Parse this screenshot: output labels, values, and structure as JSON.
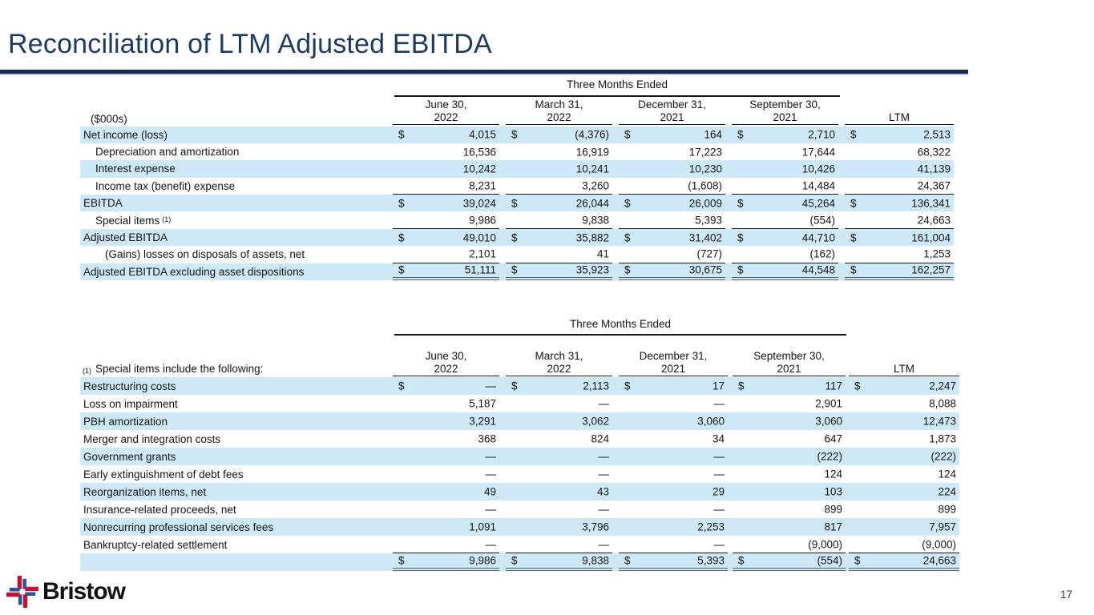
{
  "page": {
    "title": "Reconciliation of LTM Adjusted EBITDA"
  },
  "colors": {
    "accent_navy": "#1f3a5f",
    "rule_navy": "#16294d",
    "band_blue": "#cde9f8",
    "logo_red": "#c8102e",
    "logo_blue": "#1d5ba5"
  },
  "table1": {
    "units_label": "($000s)",
    "span_header": "Three Months Ended",
    "columns": [
      {
        "l1": "June 30,",
        "l2": "2022"
      },
      {
        "l1": "March 31,",
        "l2": "2022"
      },
      {
        "l1": "December 31,",
        "l2": "2021"
      },
      {
        "l1": "September 30,",
        "l2": "2021"
      },
      {
        "l1": "",
        "l2": "LTM"
      }
    ],
    "rows": [
      {
        "label": "Net income (loss)",
        "indent": 0,
        "band": true,
        "dollar": "$",
        "values": [
          "4,015",
          "(4,376)",
          "164",
          "2,710",
          "2,513"
        ]
      },
      {
        "label": "Depreciation and amortization",
        "indent": 1,
        "band": false,
        "values": [
          "16,536",
          "16,919",
          "17,223",
          "17,644",
          "68,322"
        ]
      },
      {
        "label": "Interest expense",
        "indent": 1,
        "band": true,
        "values": [
          "10,242",
          "10,241",
          "10,230",
          "10,426",
          "41,139"
        ]
      },
      {
        "label": "Income tax (benefit) expense",
        "indent": 1,
        "band": false,
        "bb": "single",
        "values": [
          "8,231",
          "3,260",
          "(1,608)",
          "14,484",
          "24,367"
        ]
      },
      {
        "label": "EBITDA",
        "indent": 0,
        "band": true,
        "dollar": "$",
        "values": [
          "39,024",
          "26,044",
          "26,009",
          "45,264",
          "136,341"
        ]
      },
      {
        "label": "Special items",
        "sup": "(1)",
        "indent": 1,
        "band": false,
        "bb": "single",
        "values": [
          "9,986",
          "9,838",
          "5,393",
          "(554)",
          "24,663"
        ]
      },
      {
        "label": "Adjusted EBITDA",
        "indent": 0,
        "band": true,
        "dollar": "$",
        "values": [
          "49,010",
          "35,882",
          "31,402",
          "44,710",
          "161,004"
        ]
      },
      {
        "label": "(Gains) losses on disposals of assets, net",
        "indent": 2,
        "band": false,
        "bb": "single",
        "values": [
          "2,101",
          "41",
          "(727)",
          "(162)",
          "1,253"
        ]
      },
      {
        "label": "Adjusted EBITDA excluding asset dispositions",
        "indent": 0,
        "band": true,
        "dollar": "$",
        "bb": "double",
        "values": [
          "51,111",
          "35,923",
          "30,675",
          "44,548",
          "162,257"
        ]
      }
    ]
  },
  "table2": {
    "note_sup": "(1)",
    "note_label": "Special items include the following:",
    "span_header": "Three Months Ended",
    "columns": [
      {
        "l1": "June 30,",
        "l2": "2022"
      },
      {
        "l1": "March 31,",
        "l2": "2022"
      },
      {
        "l1": "December 31,",
        "l2": "2021"
      },
      {
        "l1": "September 30,",
        "l2": "2021"
      },
      {
        "l1": "",
        "l2": "LTM"
      }
    ],
    "rows": [
      {
        "label": "Restructuring costs",
        "indent": 0,
        "band": true,
        "dollar": "$",
        "values": [
          "—",
          "2,113",
          "17",
          "117",
          "2,247"
        ]
      },
      {
        "label": "Loss on impairment",
        "indent": 0,
        "band": false,
        "values": [
          "5,187",
          "—",
          "—",
          "2,901",
          "8,088"
        ]
      },
      {
        "label": "PBH amortization",
        "indent": 0,
        "band": true,
        "values": [
          "3,291",
          "3,062",
          "3,060",
          "3,060",
          "12,473"
        ]
      },
      {
        "label": "Merger and integration costs",
        "indent": 0,
        "band": false,
        "values": [
          "368",
          "824",
          "34",
          "647",
          "1,873"
        ]
      },
      {
        "label": "Government grants",
        "indent": 0,
        "band": true,
        "values": [
          "—",
          "—",
          "—",
          "(222)",
          "(222)"
        ]
      },
      {
        "label": "Early extinguishment of debt fees",
        "indent": 0,
        "band": false,
        "values": [
          "—",
          "—",
          "—",
          "124",
          "124"
        ]
      },
      {
        "label": "Reorganization items, net",
        "indent": 0,
        "band": true,
        "values": [
          "49",
          "43",
          "29",
          "103",
          "224"
        ]
      },
      {
        "label": "Insurance-related proceeds, net",
        "indent": 0,
        "band": false,
        "values": [
          "—",
          "—",
          "—",
          "899",
          "899"
        ]
      },
      {
        "label": "Nonrecurring professional services fees",
        "indent": 0,
        "band": true,
        "values": [
          "1,091",
          "3,796",
          "2,253",
          "817",
          "7,957"
        ]
      },
      {
        "label": "Bankruptcy-related settlement",
        "indent": 0,
        "band": false,
        "bb": "single",
        "values": [
          "—",
          "—",
          "—",
          "(9,000)",
          "(9,000)"
        ]
      },
      {
        "label": "",
        "indent": 0,
        "band": true,
        "dollar": "$",
        "bb": "double",
        "values": [
          "9,986",
          "9,838",
          "5,393",
          "(554)",
          "24,663"
        ]
      }
    ]
  },
  "footer": {
    "brand": "Bristow",
    "icon": "bristow-pinwheel-icon",
    "page_number": "17"
  }
}
